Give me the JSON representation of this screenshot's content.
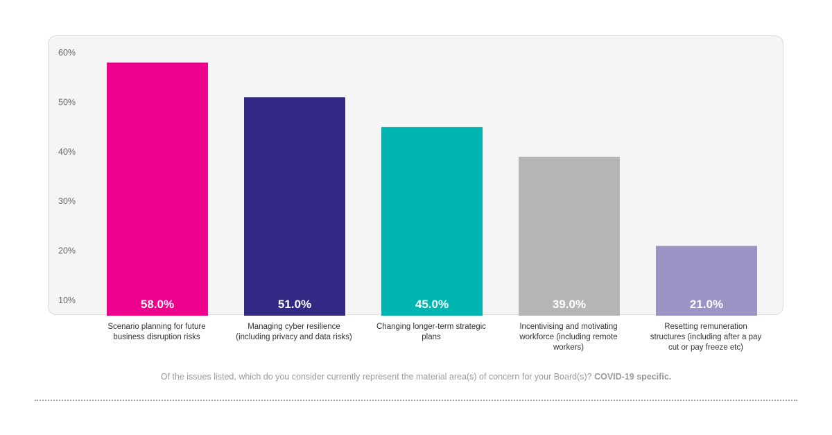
{
  "chart_data": {
    "type": "bar",
    "title": "",
    "xlabel": "",
    "ylabel": "",
    "categories": [
      "Scenario planning for future business disruption risks",
      "Managing cyber resilience (including privacy and data risks)",
      "Changing longer-term strategic plans",
      "Incentivising and motivating workforce (including remote workers)",
      "Resetting remuneration structures (including after a pay cut or pay freeze etc)"
    ],
    "values": [
      58.0,
      51.0,
      45.0,
      39.0,
      21.0
    ],
    "value_labels": [
      "58.0%",
      "51.0%",
      "45.0%",
      "39.0%",
      "21.0%"
    ],
    "colors": [
      "#ec008c",
      "#322985",
      "#00b5b0",
      "#b5b5b5",
      "#9b94c4"
    ],
    "yticks": [
      10,
      20,
      30,
      40,
      50,
      60
    ],
    "ytick_labels": [
      "10%",
      "20%",
      "30%",
      "40%",
      "50%",
      "60%"
    ],
    "ylim": [
      10,
      60
    ],
    "grid": false,
    "legend": "none"
  },
  "footnote": {
    "text": "Of the issues listed, which do you consider currently represent the material area(s) of concern for your Board(s)?",
    "bold": "COVID-19 specific."
  }
}
